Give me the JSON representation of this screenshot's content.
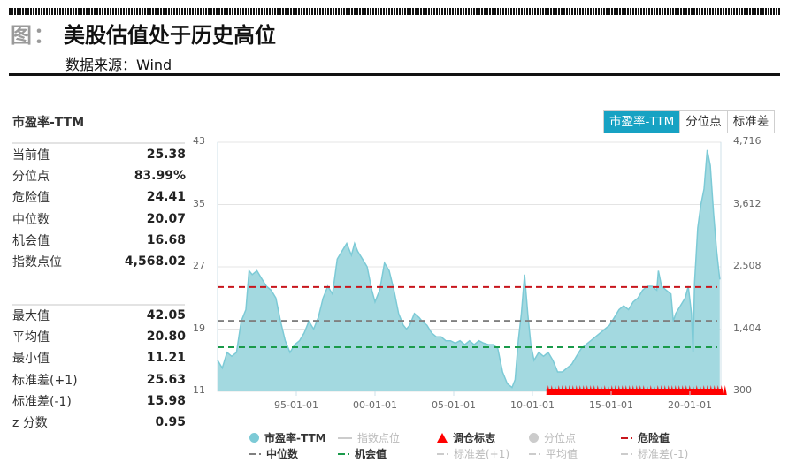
{
  "header": {
    "figure_label": "图：",
    "title": "美股估值处于历史高位",
    "source": "数据来源：Wind"
  },
  "stats_panel": {
    "title": "市盈率-TTM",
    "group1": [
      {
        "label": "当前值",
        "value": "25.38"
      },
      {
        "label": "分位点",
        "value": "83.99%"
      },
      {
        "label": "危险值",
        "value": "24.41"
      },
      {
        "label": "中位数",
        "value": "20.07"
      },
      {
        "label": "机会值",
        "value": "16.68"
      },
      {
        "label": "指数点位",
        "value": "4,568.02"
      }
    ],
    "group2": [
      {
        "label": "最大值",
        "value": "42.05"
      },
      {
        "label": "平均值",
        "value": "20.80"
      },
      {
        "label": "最小值",
        "value": "11.21"
      },
      {
        "label": "标准差(+1)",
        "value": "25.63"
      },
      {
        "label": "标准差(-1)",
        "value": "15.98"
      },
      {
        "label": "z 分数",
        "value": "0.95"
      }
    ]
  },
  "toggles": [
    {
      "label": "市盈率-TTM",
      "active": true
    },
    {
      "label": "分位点",
      "active": false
    },
    {
      "label": "标准差",
      "active": false
    }
  ],
  "colors": {
    "area_fill": "#a3d9e0",
    "area_line": "#7ccad6",
    "danger": "#c8161d",
    "median": "#808080",
    "opportunity": "#1a9a4a",
    "signal": "#ff0000",
    "accent": "#17a2c3"
  },
  "legend": [
    {
      "label": "市盈率-TTM",
      "symbol": "circle",
      "color": "#7ccad6",
      "active": true
    },
    {
      "label": "指数点位",
      "symbol": "line",
      "color": "#cccccc",
      "active": false
    },
    {
      "label": "调仓标志",
      "symbol": "triangle",
      "color": "#ff0000",
      "active": true
    },
    {
      "label": "分位点",
      "symbol": "circle",
      "color": "#cccccc",
      "active": false
    },
    {
      "label": "危险值",
      "symbol": "dash",
      "color": "#c8161d",
      "active": true
    },
    {
      "label": "中位数",
      "symbol": "dash",
      "color": "#808080",
      "active": true
    },
    {
      "label": "机会值",
      "symbol": "dash",
      "color": "#1a9a4a",
      "active": true
    },
    {
      "label": "标准差(+1)",
      "symbol": "dash",
      "color": "#cccccc",
      "active": false
    },
    {
      "label": "平均值",
      "symbol": "dash",
      "color": "#cccccc",
      "active": false
    },
    {
      "label": "标准差(-1)",
      "symbol": "dash",
      "color": "#cccccc",
      "active": false
    }
  ],
  "chart_data": {
    "type": "area",
    "title": "市盈率-TTM",
    "xlabel": "",
    "ylabel": "",
    "x_ticks": [
      "95-01-01",
      "00-01-01",
      "05-01-01",
      "10-01-01",
      "15-01-01",
      "20-01-01"
    ],
    "y_left_ticks": [
      11,
      19,
      27,
      35,
      43
    ],
    "y_right_ticks": [
      "300",
      "1,404",
      "2,508",
      "3,612",
      "4,716"
    ],
    "ylim": [
      11,
      43
    ],
    "y2lim": [
      300,
      4716
    ],
    "grid": true,
    "legend_position": "bottom",
    "series": [
      {
        "name": "市盈率-TTM",
        "x": [
          1990.0,
          1990.3,
          1990.6,
          1990.9,
          1991.2,
          1991.5,
          1991.8,
          1992.0,
          1992.2,
          1992.5,
          1992.8,
          1993.1,
          1993.4,
          1993.7,
          1994.0,
          1994.3,
          1994.6,
          1994.9,
          1995.2,
          1995.5,
          1995.8,
          1996.1,
          1996.4,
          1996.7,
          1997.0,
          1997.3,
          1997.6,
          1997.9,
          1998.2,
          1998.5,
          1998.7,
          1998.9,
          1999.2,
          1999.5,
          1999.8,
          2000.0,
          2000.3,
          2000.6,
          2000.9,
          2001.2,
          2001.5,
          2001.8,
          2002.0,
          2002.2,
          2002.5,
          2002.8,
          2003.0,
          2003.3,
          2003.6,
          2003.9,
          2004.2,
          2004.5,
          2004.8,
          2005.1,
          2005.4,
          2005.7,
          2006.0,
          2006.3,
          2006.6,
          2006.9,
          2007.2,
          2007.5,
          2007.8,
          2008.1,
          2008.4,
          2008.7,
          2008.9,
          2009.1,
          2009.3,
          2009.5,
          2009.7,
          2009.9,
          2010.1,
          2010.4,
          2010.7,
          2011.0,
          2011.3,
          2011.6,
          2011.9,
          2012.2,
          2012.5,
          2012.8,
          2013.1,
          2013.4,
          2013.7,
          2014.0,
          2014.3,
          2014.6,
          2014.9,
          2015.2,
          2015.5,
          2015.8,
          2016.1,
          2016.4,
          2016.7,
          2017.0,
          2017.3,
          2017.6,
          2017.9,
          2018.0,
          2018.2,
          2018.5,
          2018.8,
          2018.95,
          2019.1,
          2019.4,
          2019.7,
          2019.9,
          2020.1,
          2020.2,
          2020.3,
          2020.5,
          2020.7,
          2020.9,
          2021.1,
          2021.3,
          2021.5,
          2021.7,
          2021.9
        ],
        "values": [
          15.0,
          14.0,
          16.0,
          15.5,
          16.0,
          20.0,
          21.5,
          26.5,
          26.0,
          26.5,
          25.5,
          24.5,
          24.0,
          23.0,
          20.0,
          17.5,
          16.0,
          17.0,
          17.5,
          18.5,
          20.0,
          19.0,
          20.5,
          23.0,
          24.5,
          23.5,
          28.0,
          29.0,
          30.0,
          28.5,
          30.0,
          29.0,
          28.0,
          27.0,
          24.0,
          22.5,
          24.0,
          27.5,
          26.5,
          24.0,
          21.0,
          19.5,
          19.0,
          19.5,
          21.0,
          20.5,
          20.0,
          19.5,
          18.5,
          18.0,
          18.0,
          17.5,
          17.5,
          17.2,
          17.5,
          17.0,
          17.5,
          17.0,
          17.5,
          17.2,
          17.0,
          17.0,
          16.5,
          13.5,
          12.0,
          11.5,
          12.5,
          17.5,
          21.0,
          26.0,
          21.0,
          17.0,
          15.0,
          16.0,
          15.5,
          16.0,
          15.0,
          13.5,
          13.5,
          14.0,
          14.5,
          15.5,
          16.5,
          17.0,
          17.5,
          18.0,
          18.5,
          19.0,
          19.5,
          20.5,
          21.5,
          22.0,
          21.5,
          22.5,
          23.0,
          24.0,
          24.5,
          24.5,
          24.0,
          26.5,
          24.5,
          24.0,
          23.5,
          20.0,
          21.0,
          22.0,
          23.0,
          24.5,
          21.0,
          16.0,
          25.0,
          32.0,
          35.0,
          37.0,
          42.0,
          40.0,
          34.0,
          29.0,
          25.38
        ]
      },
      {
        "name": "危险值",
        "value": 24.41
      },
      {
        "name": "中位数",
        "value": 20.07
      },
      {
        "name": "机会值",
        "value": 16.68
      },
      {
        "name": "调仓标志",
        "x_range": [
          2011.0,
          2021.9
        ]
      }
    ]
  }
}
